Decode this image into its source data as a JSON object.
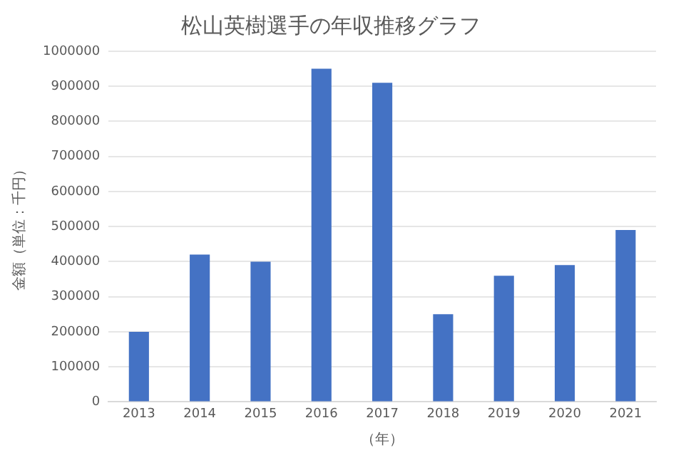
{
  "chart_data": {
    "type": "bar",
    "title": "松山英樹選手の年収推移グラフ",
    "xlabel": "（年）",
    "ylabel": "金額（単位：千円）",
    "categories": [
      "2013",
      "2014",
      "2015",
      "2016",
      "2017",
      "2018",
      "2019",
      "2020",
      "2021"
    ],
    "values": [
      200000,
      420000,
      400000,
      950000,
      910000,
      250000,
      360000,
      390000,
      490000
    ],
    "color": "#4472c4",
    "ylim": [
      0,
      1000000
    ],
    "yticks": [
      0,
      100000,
      200000,
      300000,
      400000,
      500000,
      600000,
      700000,
      800000,
      900000,
      1000000
    ],
    "grid": "y",
    "legend": false
  }
}
